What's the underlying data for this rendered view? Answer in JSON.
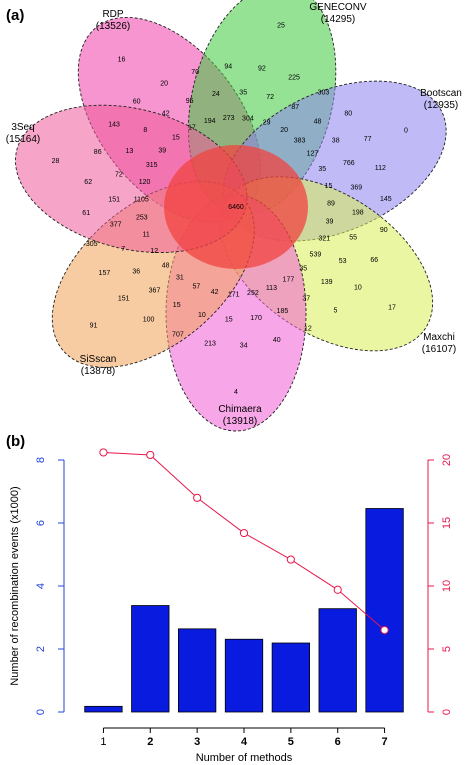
{
  "panel_a": {
    "label": "(a)",
    "sets": [
      {
        "name": "RDP",
        "count": "(13526)",
        "color": "#ee3ea7"
      },
      {
        "name": "GENECONV",
        "count": "(14295)",
        "color": "#3ecb3e"
      },
      {
        "name": "Bootscan",
        "count": "(12935)",
        "color": "#8c83ef"
      },
      {
        "name": "Maxchi",
        "count": "(16107)",
        "color": "#d8ee55"
      },
      {
        "name": "Chimaera",
        "count": "(13918)",
        "color": "#f05cd6"
      },
      {
        "name": "SiSscan",
        "count": "(13878)",
        "color": "#f3a257"
      },
      {
        "name": "3Seq",
        "count": "(15164)",
        "color": "#ef5b9a"
      }
    ],
    "region_values": {
      "center": "6460",
      "unique": [
        "16",
        "25",
        "0",
        "17",
        "4",
        "91",
        "28"
      ],
      "labels": [
        "20",
        "70",
        "94",
        "92",
        "225",
        "303",
        "80",
        "77",
        "112",
        "145",
        "90",
        "66",
        "10",
        "5",
        "12",
        "40",
        "34",
        "213",
        "707",
        "100",
        "151",
        "157",
        "305",
        "61",
        "62",
        "86",
        "143",
        "60",
        "95",
        "24",
        "35",
        "72",
        "87",
        "48",
        "38",
        "766",
        "369",
        "198",
        "55",
        "53",
        "139",
        "37",
        "185",
        "170",
        "15",
        "10",
        "15",
        "367",
        "36",
        "7",
        "377",
        "151",
        "72",
        "13",
        "8",
        "42",
        "194",
        "273",
        "304",
        "29",
        "20",
        "383",
        "127",
        "35",
        "15",
        "89",
        "39",
        "321",
        "539",
        "35",
        "177",
        "113",
        "252",
        "171",
        "42",
        "57",
        "31",
        "48",
        "12",
        "11",
        "253",
        "1105",
        "120",
        "315",
        "39",
        "15",
        "17"
      ]
    }
  },
  "panel_b": {
    "label": "(b)",
    "chart_data": {
      "type": "bar",
      "categories": [
        "1",
        "2",
        "3",
        "4",
        "5",
        "6",
        "7"
      ],
      "xlabel": "Number of methods",
      "ylabel": "Number of recombination events (x1000)",
      "ylim": [
        0,
        8
      ],
      "yticks": [
        "0",
        "2",
        "4",
        "6",
        "8"
      ],
      "series": [
        {
          "type": "bar",
          "values": [
            0.18,
            3.38,
            2.64,
            2.31,
            2.19,
            3.28,
            6.46
          ],
          "color": "#0a1be0",
          "axis": "left"
        },
        {
          "type": "line",
          "values": [
            20.6,
            20.4,
            17.0,
            14.2,
            12.1,
            9.7,
            6.5
          ],
          "color": "#e8184a",
          "axis": "right"
        }
      ],
      "y2lim": [
        0,
        20
      ],
      "y2ticks": [
        "0",
        "5",
        "10",
        "15",
        "20"
      ],
      "left_axis_color": "#2244dd",
      "right_axis_color": "#e8184a"
    }
  }
}
